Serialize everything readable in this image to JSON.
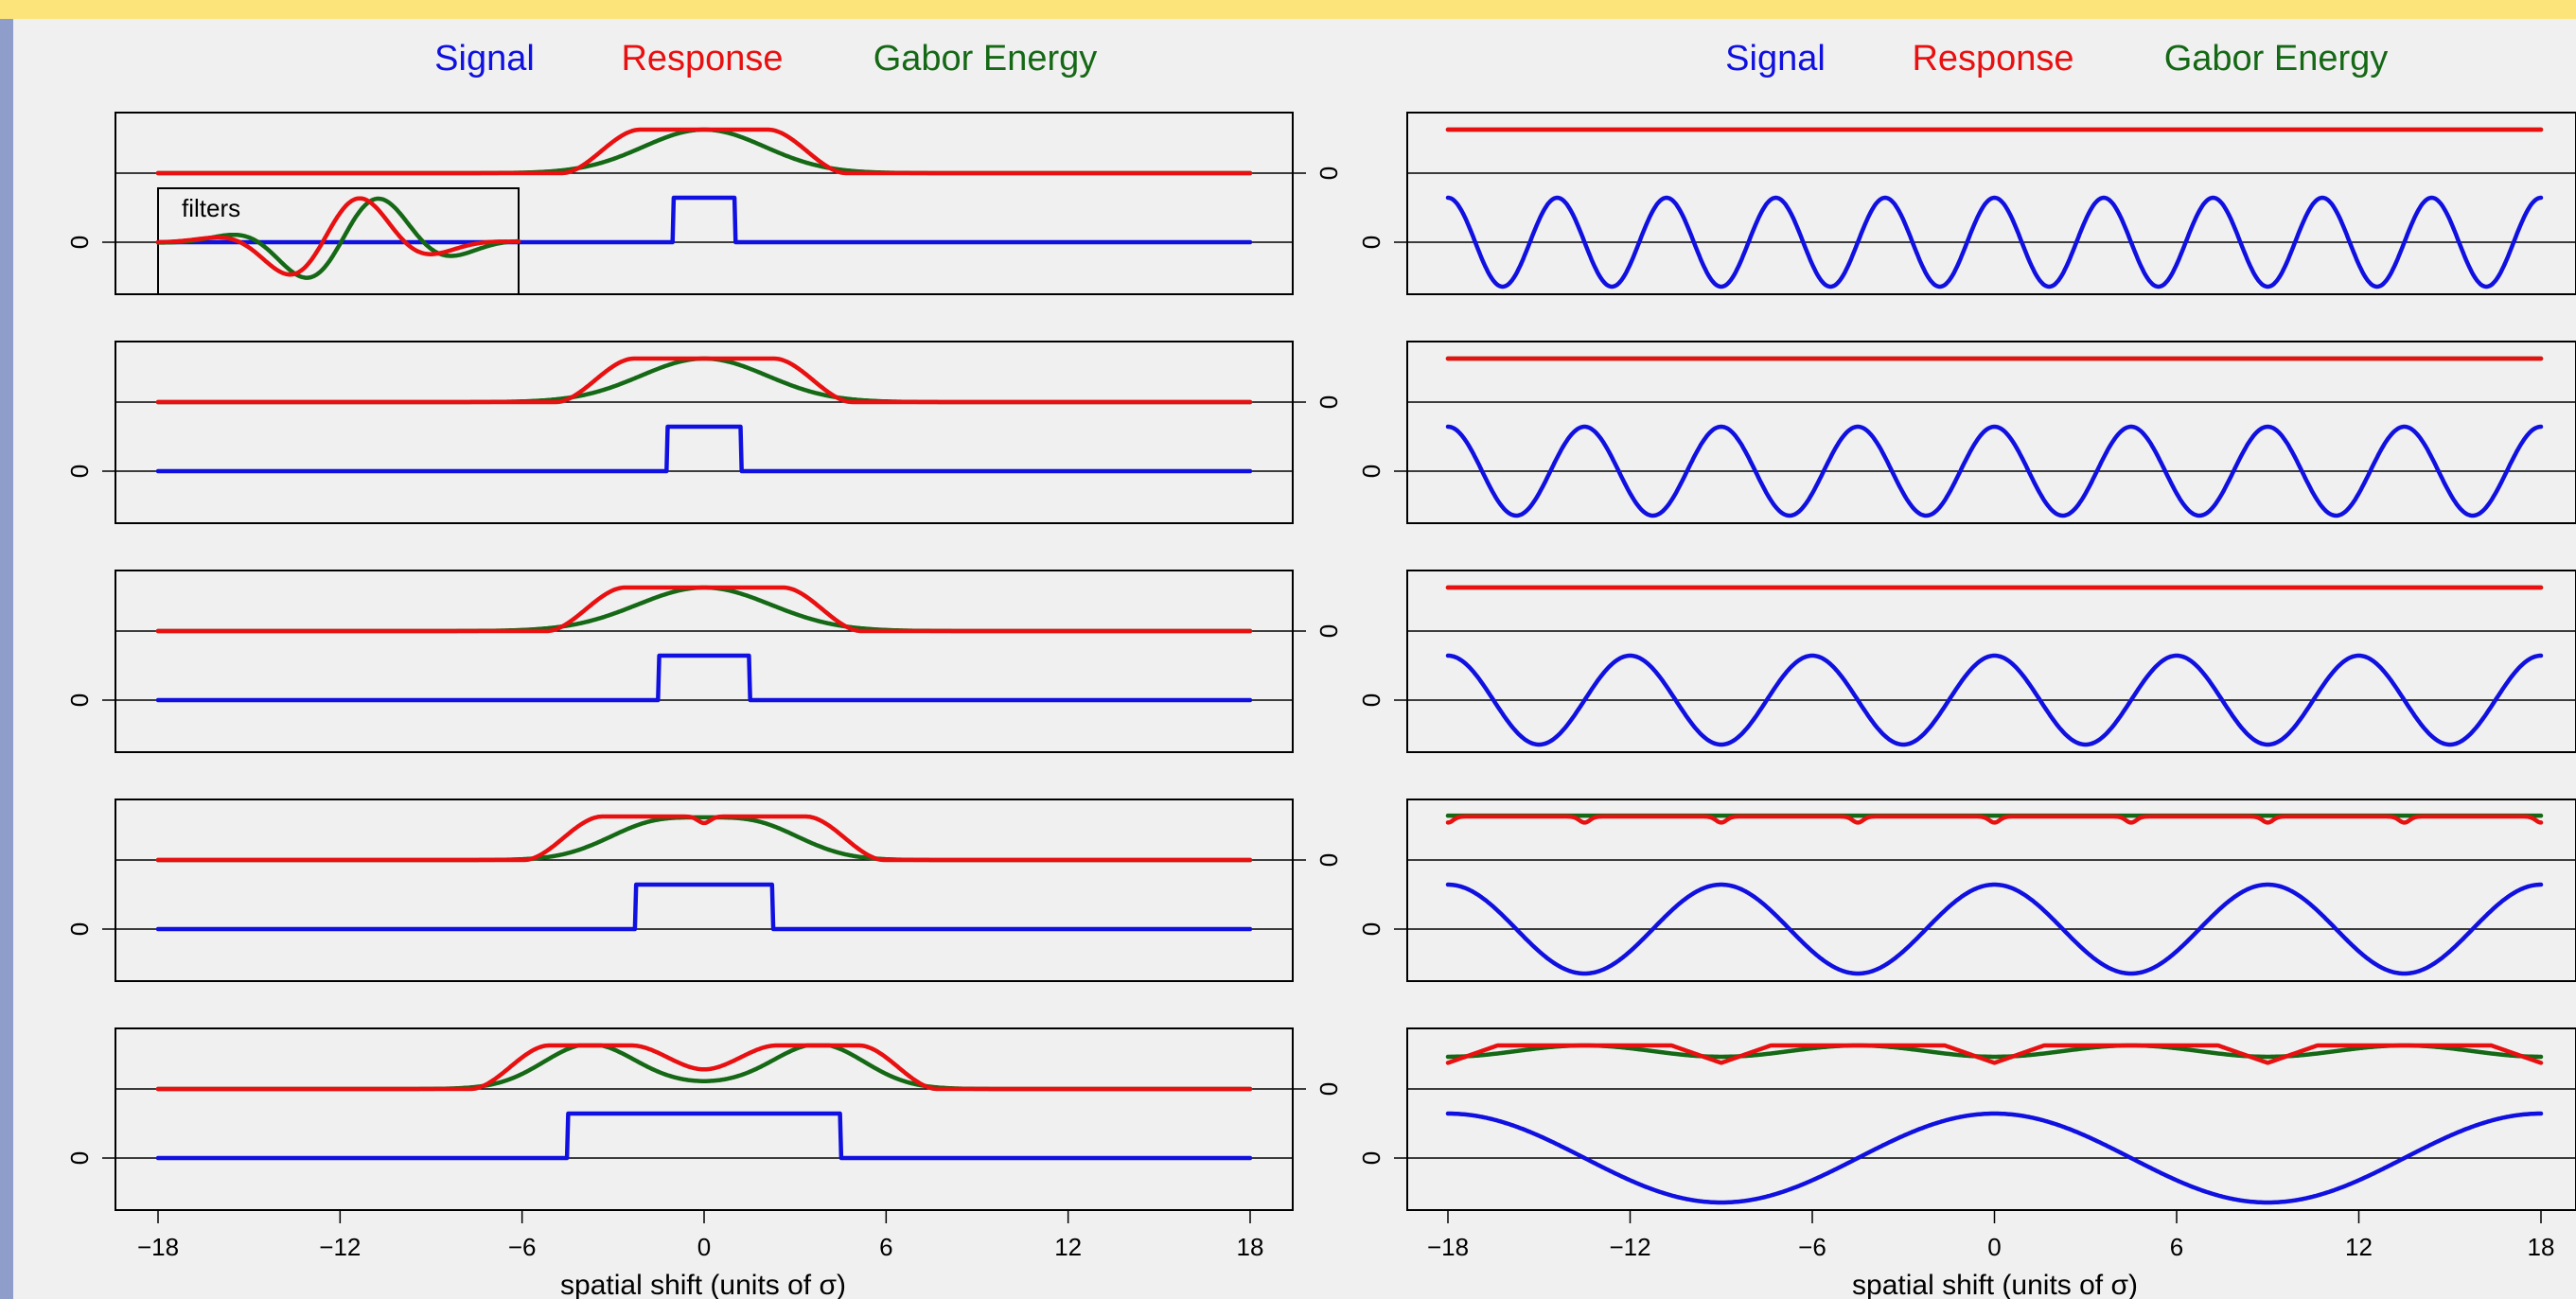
{
  "colors": {
    "signal": "#1010e0",
    "response": "#e81010",
    "gabor": "#156815",
    "bar_top": "#fce47a",
    "bar_left": "#8e9dc9"
  },
  "legend": [
    "Signal",
    "Response",
    "Gabor Energy"
  ],
  "filters_label": "filters",
  "chart_data": [
    {
      "type": "line",
      "title": "",
      "xlabel": "spatial shift (units of σ)",
      "ylabel": "",
      "xlim": [
        -18,
        18
      ],
      "xticks": [
        -18,
        -12,
        -6,
        0,
        6,
        12,
        18
      ],
      "ytick_label": "0",
      "series": [
        {
          "name": "Signal",
          "description": "centered rectangular pulse"
        },
        {
          "name": "Response",
          "description": "flat-topped bump"
        },
        {
          "name": "Gabor Energy",
          "description": "smooth bump(s)"
        }
      ],
      "panels": [
        {
          "signal_kind": "pulse",
          "pulse_half_width": 1.0
        },
        {
          "signal_kind": "pulse",
          "pulse_half_width": 1.2
        },
        {
          "signal_kind": "pulse",
          "pulse_half_width": 1.5
        },
        {
          "signal_kind": "pulse",
          "pulse_half_width": 2.25
        },
        {
          "signal_kind": "pulse",
          "pulse_half_width": 4.5
        }
      ]
    },
    {
      "type": "line",
      "title": "",
      "xlabel": "spatial shift (units of σ)",
      "ylabel": "",
      "xlim": [
        -18,
        18
      ],
      "xticks": [
        -18,
        -12,
        -6,
        0,
        6,
        12,
        18
      ],
      "ytick_label": "0",
      "series": [
        {
          "name": "Signal",
          "description": "sinusoid"
        },
        {
          "name": "Response",
          "description": "near-constant with small dips"
        },
        {
          "name": "Gabor Energy",
          "description": "near-constant with ripple"
        }
      ],
      "panels": [
        {
          "signal_kind": "sine",
          "period": 3.6
        },
        {
          "signal_kind": "sine",
          "period": 4.5
        },
        {
          "signal_kind": "sine",
          "period": 6.0
        },
        {
          "signal_kind": "sine",
          "period": 9.0
        },
        {
          "signal_kind": "sine",
          "period": 18.0
        }
      ]
    }
  ]
}
